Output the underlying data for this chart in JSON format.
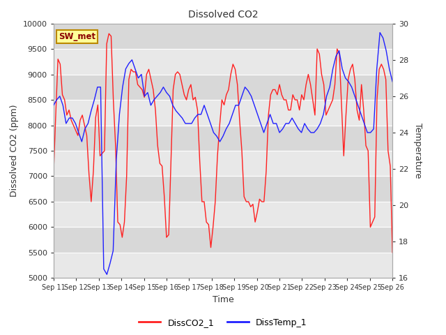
{
  "title": "Dissolved CO2",
  "xlabel": "Time",
  "ylabel_left": "Dissolved CO2 (ppm)",
  "ylabel_right": "Temperature",
  "annotation_text": "SW_met",
  "annotation_bg": "#ffff99",
  "annotation_border": "#bb8800",
  "legend_labels": [
    "DissCO2_1",
    "DissTemp_1"
  ],
  "co2_color": "#ff2020",
  "temp_color": "#2020ff",
  "ylim_co2": [
    5000,
    10000
  ],
  "ylim_temp": [
    16,
    30
  ],
  "yticks_co2": [
    5000,
    5500,
    6000,
    6500,
    7000,
    7500,
    8000,
    8500,
    9000,
    9500,
    10000
  ],
  "yticks_temp": [
    16,
    18,
    20,
    22,
    24,
    26,
    28,
    30
  ],
  "fig_bg": "#ffffff",
  "plot_bg": "#e8e8e8",
  "band_dark": "#d8d8d8",
  "band_light": "#e8e8e8",
  "xtick_labels": [
    "Sep 11",
    "Sep 12",
    "Sep 13",
    "Sep 14",
    "Sep 15",
    "Sep 16",
    "Sep 17",
    "Sep 18",
    "Sep 19",
    "Sep 20",
    "Sep 21",
    "Sep 22",
    "Sep 23",
    "Sep 24",
    "Sep 25",
    "Sep 26"
  ],
  "co2_data": [
    7050,
    8200,
    9300,
    9200,
    8600,
    8500,
    8200,
    8300,
    8100,
    8000,
    7900,
    7800,
    8100,
    8200,
    8000,
    7800,
    7050,
    6500,
    7100,
    8150,
    8400,
    7400,
    7450,
    7500,
    9600,
    9800,
    9750,
    8500,
    7600,
    6100,
    6050,
    5800,
    6100,
    7000,
    8900,
    9100,
    9050,
    9050,
    8800,
    8750,
    8700,
    8550,
    9000,
    9100,
    8900,
    8700,
    8300,
    7600,
    7250,
    7200,
    6600,
    5800,
    5850,
    7300,
    8700,
    9000,
    9050,
    9000,
    8800,
    8600,
    8500,
    8700,
    8800,
    8500,
    8550,
    8300,
    7300,
    6500,
    6500,
    6100,
    6050,
    5600,
    6000,
    6500,
    7400,
    8000,
    8500,
    8400,
    8600,
    8700,
    9000,
    9200,
    9100,
    8800,
    8100,
    7500,
    6600,
    6500,
    6500,
    6400,
    6450,
    6100,
    6300,
    6550,
    6500,
    6500,
    7100,
    8200,
    8600,
    8700,
    8700,
    8600,
    8800,
    8600,
    8500,
    8500,
    8300,
    8300,
    8600,
    8500,
    8500,
    8300,
    8600,
    8500,
    8800,
    9000,
    8800,
    8500,
    8200,
    9500,
    9400,
    9000,
    8800,
    8200,
    8300,
    8400,
    8500,
    8800,
    9500,
    9400,
    8400,
    7400,
    8200,
    8900,
    9100,
    9200,
    8900,
    8300,
    8100,
    8800,
    8300,
    7600,
    7500,
    6000,
    6100,
    6200,
    8500,
    9100,
    9200,
    9100,
    8900,
    7500,
    7200,
    5500
  ],
  "temp_special": [
    25.5,
    25.8,
    26.0,
    25.5,
    24.5,
    24.8,
    24.8,
    24.5,
    24.0,
    23.5,
    24.2,
    24.5,
    25.2,
    25.8,
    26.5,
    26.5,
    16.5,
    16.2,
    16.8,
    17.5,
    22.5,
    25.0,
    26.5,
    27.5,
    27.8,
    28.0,
    27.5,
    27.0,
    27.2,
    26.0,
    26.2,
    25.5,
    25.8,
    26.0,
    26.2,
    26.5,
    26.2,
    26.0,
    25.5,
    25.2,
    25.0,
    24.8,
    24.5,
    24.5,
    24.5,
    24.8,
    25.0,
    25.0,
    25.5,
    25.0,
    24.5,
    24.0,
    23.8,
    23.5,
    23.8,
    24.2,
    24.5,
    25.0,
    25.5,
    25.5,
    26.0,
    26.5,
    26.3,
    26.0,
    25.5,
    25.0,
    24.5,
    24.0,
    24.5,
    25.0,
    24.5,
    24.5,
    24.0,
    24.2,
    24.5,
    24.5,
    24.8,
    24.5,
    24.2,
    24.0,
    24.5,
    24.2,
    24.0,
    24.0,
    24.2,
    24.5,
    25.0,
    26.0,
    26.5,
    27.5,
    28.2,
    28.5,
    27.5,
    27.0,
    26.8,
    26.5,
    26.0,
    25.5,
    25.0,
    24.5,
    24.0,
    24.0,
    24.2,
    27.5,
    29.5,
    29.2,
    28.5,
    27.5,
    26.8
  ]
}
